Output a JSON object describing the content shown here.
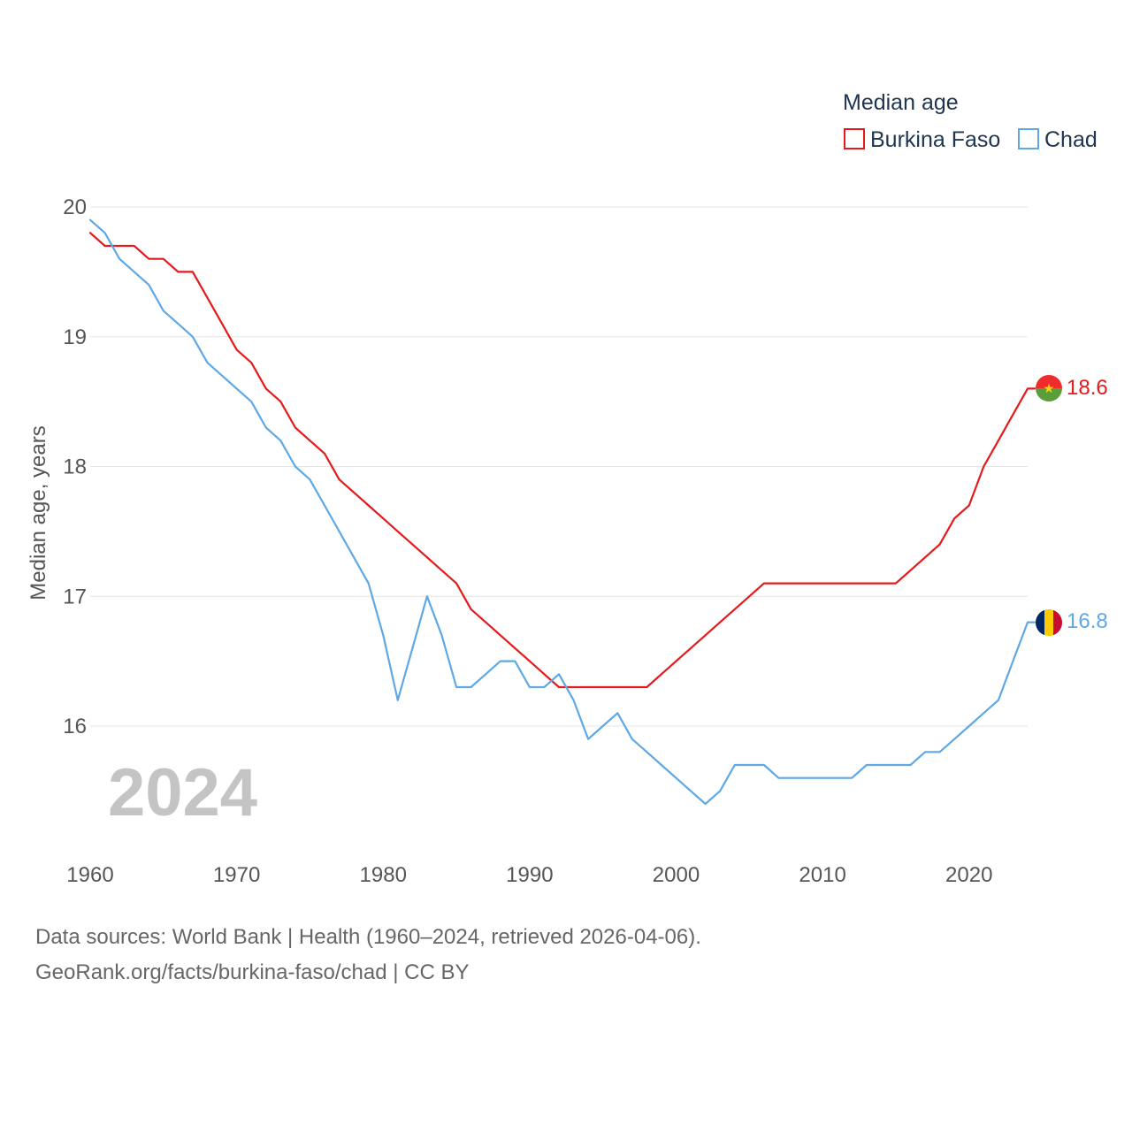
{
  "chart_data": {
    "type": "line",
    "title": "",
    "ylabel": "Median age, years",
    "xlabel": "",
    "xlim": [
      1960,
      2024
    ],
    "ylim": [
      15,
      20
    ],
    "yticks": [
      16,
      17,
      18,
      19,
      20
    ],
    "xticks": [
      1960,
      1970,
      1980,
      1990,
      2000,
      2010,
      2020
    ],
    "grid": true,
    "legend": {
      "title": "Median age",
      "position": "top-right"
    },
    "year_watermark": "2024",
    "x": [
      1960,
      1961,
      1962,
      1963,
      1964,
      1965,
      1966,
      1967,
      1968,
      1969,
      1970,
      1971,
      1972,
      1973,
      1974,
      1975,
      1976,
      1977,
      1978,
      1979,
      1980,
      1981,
      1982,
      1983,
      1984,
      1985,
      1986,
      1987,
      1988,
      1989,
      1990,
      1991,
      1992,
      1993,
      1994,
      1995,
      1996,
      1997,
      1998,
      1999,
      2000,
      2001,
      2002,
      2003,
      2004,
      2005,
      2006,
      2007,
      2008,
      2009,
      2010,
      2011,
      2012,
      2013,
      2014,
      2015,
      2016,
      2017,
      2018,
      2019,
      2020,
      2021,
      2022,
      2023,
      2024
    ],
    "series": [
      {
        "name": "Burkina Faso",
        "color": "#e41a1c",
        "end_label": "18.6",
        "values": [
          19.8,
          19.7,
          19.7,
          19.7,
          19.6,
          19.6,
          19.5,
          19.5,
          19.3,
          19.1,
          18.9,
          18.8,
          18.6,
          18.5,
          18.3,
          18.2,
          18.1,
          17.9,
          17.8,
          17.7,
          17.6,
          17.5,
          17.4,
          17.3,
          17.2,
          17.1,
          16.9,
          16.8,
          16.7,
          16.6,
          16.5,
          16.4,
          16.3,
          16.3,
          16.3,
          16.3,
          16.3,
          16.3,
          16.3,
          16.4,
          16.5,
          16.6,
          16.7,
          16.8,
          16.9,
          17.0,
          17.1,
          17.1,
          17.1,
          17.1,
          17.1,
          17.1,
          17.1,
          17.1,
          17.1,
          17.1,
          17.2,
          17.3,
          17.4,
          17.6,
          17.7,
          18.0,
          18.2,
          18.4,
          18.6
        ]
      },
      {
        "name": "Chad",
        "color": "#5fa8e6",
        "end_label": "16.8",
        "values": [
          19.9,
          19.8,
          19.6,
          19.5,
          19.4,
          19.2,
          19.1,
          19.0,
          18.8,
          18.7,
          18.6,
          18.5,
          18.3,
          18.2,
          18.0,
          17.9,
          17.7,
          17.5,
          17.3,
          17.1,
          16.7,
          16.2,
          16.6,
          17.0,
          16.7,
          16.3,
          16.3,
          16.4,
          16.5,
          16.5,
          16.3,
          16.3,
          16.4,
          16.2,
          15.9,
          16.0,
          16.1,
          15.9,
          15.8,
          15.7,
          15.6,
          15.5,
          15.4,
          15.5,
          15.7,
          15.7,
          15.7,
          15.6,
          15.6,
          15.6,
          15.6,
          15.6,
          15.6,
          15.7,
          15.7,
          15.7,
          15.7,
          15.8,
          15.8,
          15.9,
          16.0,
          16.1,
          16.2,
          16.5,
          16.8
        ]
      }
    ]
  },
  "footer": {
    "line1": "Data sources: World Bank | Health (1960–2024, retrieved 2026-04-06).",
    "line2": "GeoRank.org/facts/burkina-faso/chad | CC BY"
  }
}
